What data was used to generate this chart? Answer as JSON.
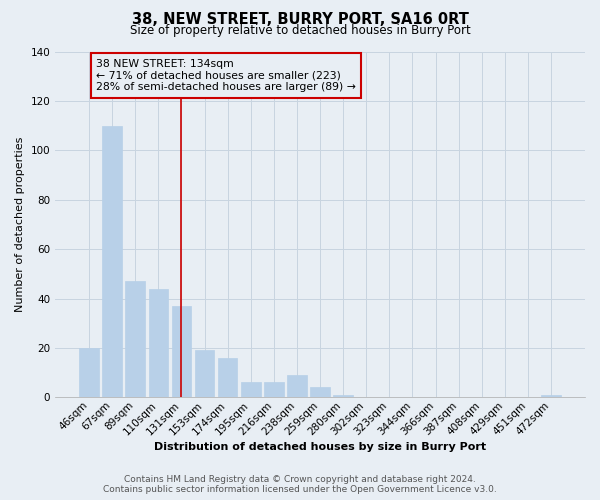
{
  "title": "38, NEW STREET, BURRY PORT, SA16 0RT",
  "subtitle": "Size of property relative to detached houses in Burry Port",
  "xlabel": "Distribution of detached houses by size in Burry Port",
  "ylabel": "Number of detached properties",
  "bar_labels": [
    "46sqm",
    "67sqm",
    "89sqm",
    "110sqm",
    "131sqm",
    "153sqm",
    "174sqm",
    "195sqm",
    "216sqm",
    "238sqm",
    "259sqm",
    "280sqm",
    "302sqm",
    "323sqm",
    "344sqm",
    "366sqm",
    "387sqm",
    "408sqm",
    "429sqm",
    "451sqm",
    "472sqm"
  ],
  "bar_values": [
    20,
    110,
    47,
    44,
    37,
    19,
    16,
    6,
    6,
    9,
    4,
    1,
    0,
    0,
    0,
    0,
    0,
    0,
    0,
    0,
    1
  ],
  "bar_color": "#b8d0e8",
  "highlight_index": 4,
  "highlight_line_color": "#cc0000",
  "ylim": [
    0,
    140
  ],
  "yticks": [
    0,
    20,
    40,
    60,
    80,
    100,
    120,
    140
  ],
  "annotation_line1": "38 NEW STREET: 134sqm",
  "annotation_line2": "← 71% of detached houses are smaller (223)",
  "annotation_line3": "28% of semi-detached houses are larger (89) →",
  "annotation_box_edgecolor": "#cc0000",
  "footer_line1": "Contains HM Land Registry data © Crown copyright and database right 2024.",
  "footer_line2": "Contains public sector information licensed under the Open Government Licence v3.0.",
  "background_color": "#e8eef4",
  "grid_color": "#c8d4e0",
  "title_fontsize": 10.5,
  "subtitle_fontsize": 8.5,
  "axis_label_fontsize": 8.0,
  "tick_fontsize": 7.5,
  "footer_fontsize": 6.5
}
